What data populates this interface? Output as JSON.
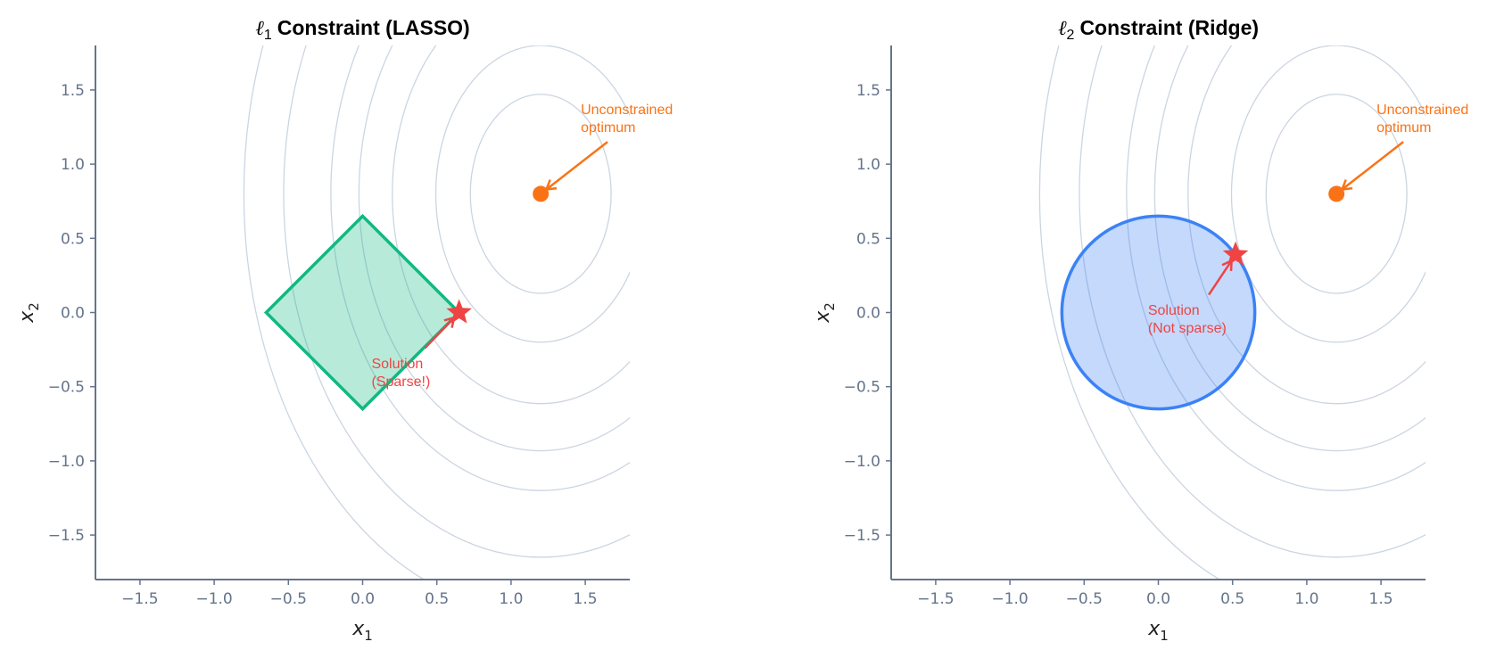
{
  "chart_data": [
    {
      "type": "contour",
      "title_symbol": "ℓ",
      "title_sub": "1",
      "title": "Constraint (LASSO)",
      "xlabel": "x",
      "xlabel_sub": "1",
      "ylabel": "x",
      "ylabel_sub": "2",
      "xlim": [
        -1.8,
        1.8
      ],
      "ylim": [
        -1.8,
        1.8
      ],
      "xticks": [
        "−1.5",
        "−1.0",
        "−0.5",
        "0.0",
        "0.5",
        "1.0",
        "1.5"
      ],
      "xtick_values": [
        -1.5,
        -1.0,
        -0.5,
        0.0,
        0.5,
        1.0,
        1.5
      ],
      "yticks": [
        "−1.5",
        "−1.0",
        "−0.5",
        "0.0",
        "0.5",
        "1.0",
        "1.5"
      ],
      "ytick_values": [
        -1.5,
        -1.0,
        -0.5,
        0.0,
        0.5,
        1.0,
        1.5
      ],
      "grid": false,
      "contour_center": [
        1.2,
        0.8
      ],
      "contour_levels": [
        0.45,
        1,
        2,
        3,
        4,
        6,
        8
      ],
      "constraint": {
        "shape": "diamond",
        "radius": 0.65,
        "edge_color": "#10b981",
        "fill_color": "#10b981"
      },
      "optimum": {
        "x": 1.2,
        "y": 0.8,
        "color": "#f97316"
      },
      "optimum_label": [
        "Unconstrained",
        "optimum"
      ],
      "optimum_label_at": [
        1.47,
        1.42
      ],
      "optimum_arrow_from": [
        1.65,
        1.15
      ],
      "solution": {
        "x": 0.65,
        "y": 0.0,
        "color": "#ef4444"
      },
      "solution_label": [
        "Solution",
        "(Sparse!)"
      ],
      "solution_label_at": [
        0.06,
        -0.29
      ],
      "solution_arrow_from": [
        0.42,
        -0.24
      ]
    },
    {
      "type": "contour",
      "title_symbol": "ℓ",
      "title_sub": "2",
      "title": "Constraint (Ridge)",
      "xlabel": "x",
      "xlabel_sub": "1",
      "ylabel": "x",
      "ylabel_sub": "2",
      "xlim": [
        -1.8,
        1.8
      ],
      "ylim": [
        -1.8,
        1.8
      ],
      "xticks": [
        "−1.5",
        "−1.0",
        "−0.5",
        "0.0",
        "0.5",
        "1.0",
        "1.5"
      ],
      "xtick_values": [
        -1.5,
        -1.0,
        -0.5,
        0.0,
        0.5,
        1.0,
        1.5
      ],
      "yticks": [
        "−1.5",
        "−1.0",
        "−0.5",
        "0.0",
        "0.5",
        "1.0",
        "1.5"
      ],
      "ytick_values": [
        -1.5,
        -1.0,
        -0.5,
        0.0,
        0.5,
        1.0,
        1.5
      ],
      "grid": false,
      "contour_center": [
        1.2,
        0.8
      ],
      "contour_levels": [
        0.45,
        1,
        2,
        3,
        4,
        6,
        8
      ],
      "constraint": {
        "shape": "circle",
        "radius": 0.65,
        "edge_color": "#3b82f6",
        "fill_color": "#3b82f6"
      },
      "optimum": {
        "x": 1.2,
        "y": 0.8,
        "color": "#f97316"
      },
      "optimum_label": [
        "Unconstrained",
        "optimum"
      ],
      "optimum_label_at": [
        1.47,
        1.42
      ],
      "optimum_arrow_from": [
        1.65,
        1.15
      ],
      "solution": {
        "x": 0.52,
        "y": 0.39,
        "color": "#ef4444"
      },
      "solution_label": [
        "Solution",
        "(Not sparse)"
      ],
      "solution_label_at": [
        -0.07,
        0.07
      ],
      "solution_arrow_from": [
        0.34,
        0.12
      ]
    }
  ],
  "colors": {
    "axis": "#64748b",
    "contour": "#cbd5e1"
  }
}
